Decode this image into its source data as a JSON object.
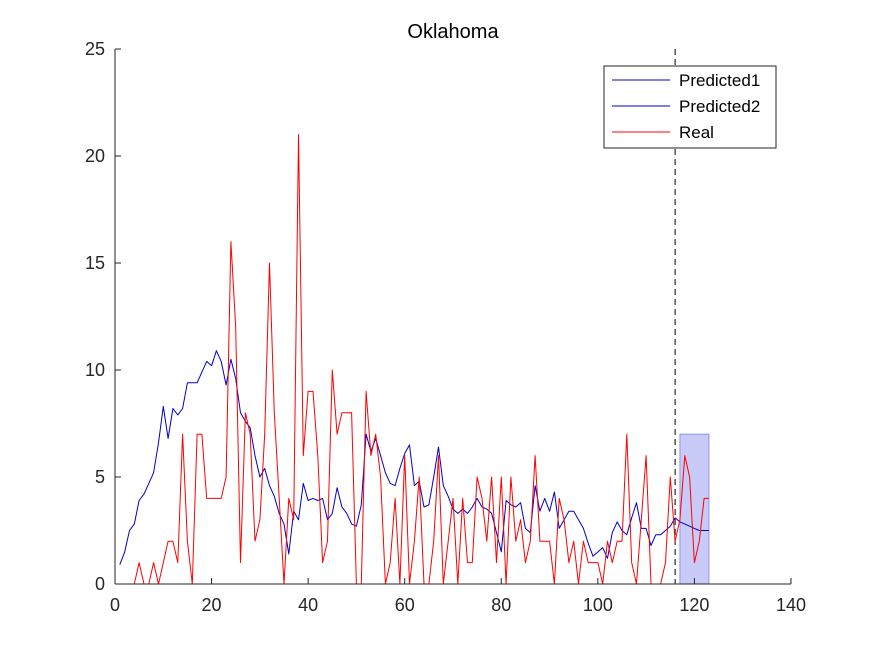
{
  "chart_data": {
    "type": "line",
    "title": "Oklahoma",
    "xlabel": "",
    "ylabel": "",
    "xlim": [
      0,
      140
    ],
    "ylim": [
      0,
      25
    ],
    "x_ticks": [
      0,
      20,
      40,
      60,
      80,
      100,
      120,
      140
    ],
    "y_ticks": [
      0,
      5,
      10,
      15,
      20,
      25
    ],
    "legend_position": "top-right",
    "grid": false,
    "series": [
      {
        "name": "Predicted1",
        "color": "#0000cc",
        "x": [
          1,
          2,
          3,
          4,
          5,
          6,
          7,
          8,
          9,
          10,
          11,
          12,
          13,
          14,
          15,
          16,
          17,
          18,
          19,
          20,
          21,
          22,
          23,
          24,
          25,
          26,
          27,
          28,
          29,
          30,
          31,
          32,
          33,
          34,
          35,
          36,
          37,
          38,
          39,
          40,
          41,
          42,
          43,
          44,
          45,
          46,
          47,
          48,
          49,
          50,
          51,
          52,
          53,
          54,
          55,
          56,
          57,
          58,
          59,
          60,
          61,
          62,
          63,
          64,
          65,
          66,
          67,
          68,
          69,
          70,
          71,
          72,
          73,
          74,
          75,
          76,
          77,
          78,
          79,
          80,
          81,
          82,
          83,
          84,
          85,
          86,
          87,
          88,
          89,
          90,
          91,
          92,
          93,
          94,
          95,
          96,
          97,
          98,
          99,
          100,
          101,
          102,
          103,
          104,
          105,
          106,
          107,
          108,
          109,
          110,
          111,
          112,
          113,
          114,
          115,
          116
        ],
        "y": [
          0.9,
          1.5,
          2.5,
          2.8,
          3.9,
          4.2,
          4.7,
          5.2,
          6.6,
          8.3,
          6.8,
          8.2,
          7.9,
          8.2,
          9.4,
          9.4,
          9.4,
          9.9,
          10.4,
          10.2,
          10.9,
          10.4,
          9.3,
          10.5,
          9.6,
          8.0,
          7.6,
          7.3,
          6.0,
          5.0,
          5.4,
          4.6,
          4.1,
          3.3,
          2.8,
          1.4,
          3.4,
          3.0,
          4.7,
          3.9,
          4.0,
          3.9,
          4.0,
          3.0,
          3.3,
          4.5,
          3.6,
          3.3,
          2.8,
          2.7,
          3.7,
          7.0,
          6.2,
          6.8,
          6.0,
          5.2,
          4.7,
          4.6,
          5.4,
          6.1,
          6.5,
          4.6,
          4.8,
          3.6,
          3.7,
          5.0,
          6.4,
          4.6,
          4.1,
          3.5,
          3.3,
          3.5,
          3.3,
          3.6,
          4.0,
          3.6,
          3.5,
          3.3,
          2.4,
          1.5,
          3.9,
          3.7,
          3.6,
          3.8,
          2.6,
          2.4,
          4.6,
          3.4,
          4.0,
          3.4,
          4.3,
          2.6,
          3.0,
          3.4,
          3.4,
          3.0,
          2.6,
          1.9,
          1.3,
          1.5,
          1.7,
          1.2,
          2.4,
          2.9,
          2.5,
          2.3,
          3.1,
          3.8,
          2.6,
          2.6,
          1.8,
          2.3,
          2.3,
          2.5,
          2.7,
          3.1
        ]
      },
      {
        "name": "Predicted2",
        "color": "#0000cc",
        "x": [
          116,
          117,
          118,
          119,
          120,
          121,
          122,
          123
        ],
        "y": [
          3.1,
          2.9,
          2.8,
          2.7,
          2.6,
          2.5,
          2.5,
          2.5
        ]
      },
      {
        "name": "Real",
        "color": "#ff0000",
        "x": [
          1,
          2,
          3,
          4,
          5,
          6,
          7,
          8,
          9,
          10,
          11,
          12,
          13,
          14,
          15,
          16,
          17,
          18,
          19,
          20,
          21,
          22,
          23,
          24,
          25,
          26,
          27,
          28,
          29,
          30,
          31,
          32,
          33,
          34,
          35,
          36,
          37,
          38,
          39,
          40,
          41,
          42,
          43,
          44,
          45,
          46,
          47,
          48,
          49,
          50,
          51,
          52,
          53,
          54,
          55,
          56,
          57,
          58,
          59,
          60,
          61,
          62,
          63,
          64,
          65,
          66,
          67,
          68,
          69,
          70,
          71,
          72,
          73,
          74,
          75,
          76,
          77,
          78,
          79,
          80,
          81,
          82,
          83,
          84,
          85,
          86,
          87,
          88,
          89,
          90,
          91,
          92,
          93,
          94,
          95,
          96,
          97,
          98,
          99,
          100,
          101,
          102,
          103,
          104,
          105,
          106,
          107,
          108,
          109,
          110,
          111,
          112,
          113,
          114,
          115,
          116,
          117,
          118,
          119,
          120,
          121,
          122,
          123
        ],
        "y": [
          0,
          0,
          0,
          0,
          1,
          0,
          0,
          1,
          0,
          1,
          2,
          2,
          1,
          7,
          2,
          0,
          7,
          7,
          4,
          4,
          4,
          4,
          5,
          16,
          12,
          1,
          8,
          7,
          2,
          3,
          7,
          15,
          8,
          4,
          0,
          4,
          3,
          21,
          6,
          9,
          9,
          6,
          1,
          2,
          10,
          7,
          8,
          8,
          8,
          0,
          0,
          9,
          6,
          7,
          5,
          0,
          1,
          4,
          0,
          6,
          0,
          2,
          5,
          0,
          0,
          2,
          6,
          0,
          2,
          4,
          0,
          4,
          1,
          1,
          5,
          4,
          2,
          5,
          1,
          5,
          0,
          5,
          2,
          3,
          1,
          2,
          6,
          2,
          2,
          2,
          0,
          4,
          3,
          1,
          2,
          0,
          2,
          1,
          1,
          1,
          0,
          2,
          1,
          2,
          2,
          7,
          1,
          0,
          3,
          6,
          0,
          0,
          0,
          1,
          5,
          2,
          3,
          6,
          5,
          1,
          2,
          4,
          4
        ]
      }
    ],
    "annotations": {
      "vline_x": 116,
      "interval": {
        "x0": 117,
        "x1": 123,
        "y0": 0,
        "y1": 7,
        "color": "#c8caf7"
      }
    }
  }
}
